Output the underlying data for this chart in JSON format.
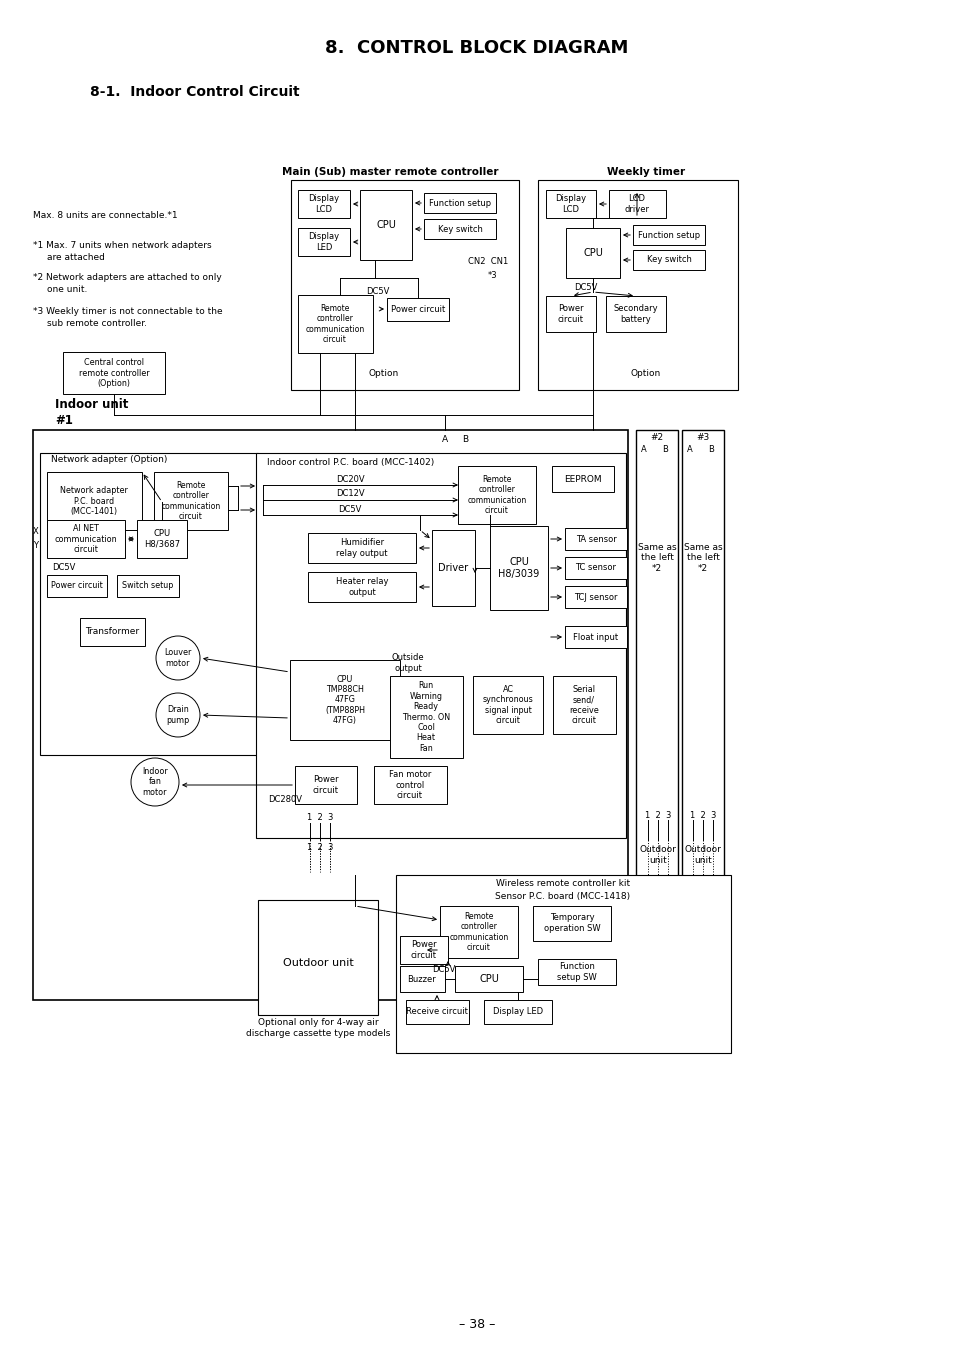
{
  "title": "8.  CONTROL BLOCK DIAGRAM",
  "subtitle": "8-1.  Indoor Control Circuit",
  "page": "– 38 –",
  "bg_color": "#ffffff"
}
